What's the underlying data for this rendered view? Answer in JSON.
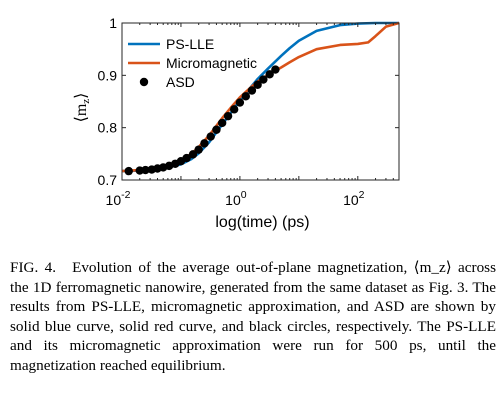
{
  "chart_data": {
    "type": "line",
    "xscale": "log",
    "xlim": [
      0.01,
      500
    ],
    "ylim": [
      0.7,
      1.0
    ],
    "xlabel": "log(time) (ps)",
    "ylabel": "⟨m_z⟩",
    "ylabel_display": "⟨m",
    "ylabel_sub": "z",
    "ylabel_close": "⟩",
    "x_ticks": [
      {
        "value": 0.01,
        "base": "10",
        "exp": "-2"
      },
      {
        "value": 1,
        "base": "10",
        "exp": "0"
      },
      {
        "value": 100,
        "base": "10",
        "exp": "2"
      }
    ],
    "y_ticks": [
      {
        "value": 0.7,
        "label": "0.7"
      },
      {
        "value": 0.8,
        "label": "0.8"
      },
      {
        "value": 0.9,
        "label": "0.9"
      },
      {
        "value": 1.0,
        "label": "1"
      }
    ],
    "legend_position": "top-left",
    "grid": false,
    "series": [
      {
        "name": "PS-LLE",
        "style": "line",
        "color": "#0072BD",
        "points": [
          [
            0.01,
            0.717
          ],
          [
            0.02,
            0.718
          ],
          [
            0.05,
            0.722
          ],
          [
            0.1,
            0.73
          ],
          [
            0.15,
            0.74
          ],
          [
            0.2,
            0.751
          ],
          [
            0.3,
            0.772
          ],
          [
            0.5,
            0.806
          ],
          [
            0.7,
            0.828
          ],
          [
            1,
            0.852
          ],
          [
            1.5,
            0.876
          ],
          [
            2,
            0.893
          ],
          [
            3,
            0.913
          ],
          [
            5,
            0.937
          ],
          [
            7,
            0.952
          ],
          [
            10,
            0.966
          ],
          [
            20,
            0.985
          ],
          [
            50,
            0.996
          ],
          [
            100,
            0.999
          ],
          [
            200,
            1.0
          ],
          [
            500,
            1.0
          ]
        ]
      },
      {
        "name": "Micromagnetic",
        "style": "line",
        "color": "#D95319",
        "points": [
          [
            0.01,
            0.717
          ],
          [
            0.02,
            0.719
          ],
          [
            0.05,
            0.725
          ],
          [
            0.1,
            0.737
          ],
          [
            0.15,
            0.75
          ],
          [
            0.2,
            0.763
          ],
          [
            0.3,
            0.785
          ],
          [
            0.5,
            0.818
          ],
          [
            0.7,
            0.838
          ],
          [
            1,
            0.858
          ],
          [
            1.5,
            0.876
          ],
          [
            2,
            0.888
          ],
          [
            3,
            0.901
          ],
          [
            5,
            0.915
          ],
          [
            7,
            0.925
          ],
          [
            10,
            0.935
          ],
          [
            20,
            0.95
          ],
          [
            50,
            0.958
          ],
          [
            100,
            0.96
          ],
          [
            150,
            0.963
          ],
          [
            200,
            0.975
          ],
          [
            300,
            0.993
          ],
          [
            500,
            1.0
          ]
        ]
      },
      {
        "name": "ASD",
        "style": "markers",
        "color": "#000000",
        "points": [
          [
            0.013,
            0.717
          ],
          [
            0.02,
            0.718
          ],
          [
            0.025,
            0.719
          ],
          [
            0.032,
            0.72
          ],
          [
            0.04,
            0.722
          ],
          [
            0.05,
            0.724
          ],
          [
            0.063,
            0.727
          ],
          [
            0.08,
            0.731
          ],
          [
            0.1,
            0.736
          ],
          [
            0.125,
            0.742
          ],
          [
            0.16,
            0.749
          ],
          [
            0.2,
            0.758
          ],
          [
            0.25,
            0.77
          ],
          [
            0.32,
            0.783
          ],
          [
            0.4,
            0.796
          ],
          [
            0.5,
            0.809
          ],
          [
            0.63,
            0.822
          ],
          [
            0.8,
            0.835
          ],
          [
            1.0,
            0.848
          ],
          [
            1.26,
            0.86
          ],
          [
            1.6,
            0.871
          ],
          [
            2.0,
            0.882
          ],
          [
            2.5,
            0.892
          ],
          [
            3.2,
            0.902
          ],
          [
            4.0,
            0.911
          ]
        ]
      }
    ]
  },
  "caption": {
    "label": "FIG. 4.",
    "text": "Evolution of the average out-of-plane magnetization, ⟨m_z⟩ across the 1D ferromagnetic nanowire, generated from the same dataset as Fig. 3. The results from PS-LLE, micromagnetic approximation, and ASD are shown by solid blue curve, solid red curve, and black circles, respectively. The PS-LLE and its micromagnetic approximation were run for 500 ps, until the magnetization reached equilibrium."
  }
}
